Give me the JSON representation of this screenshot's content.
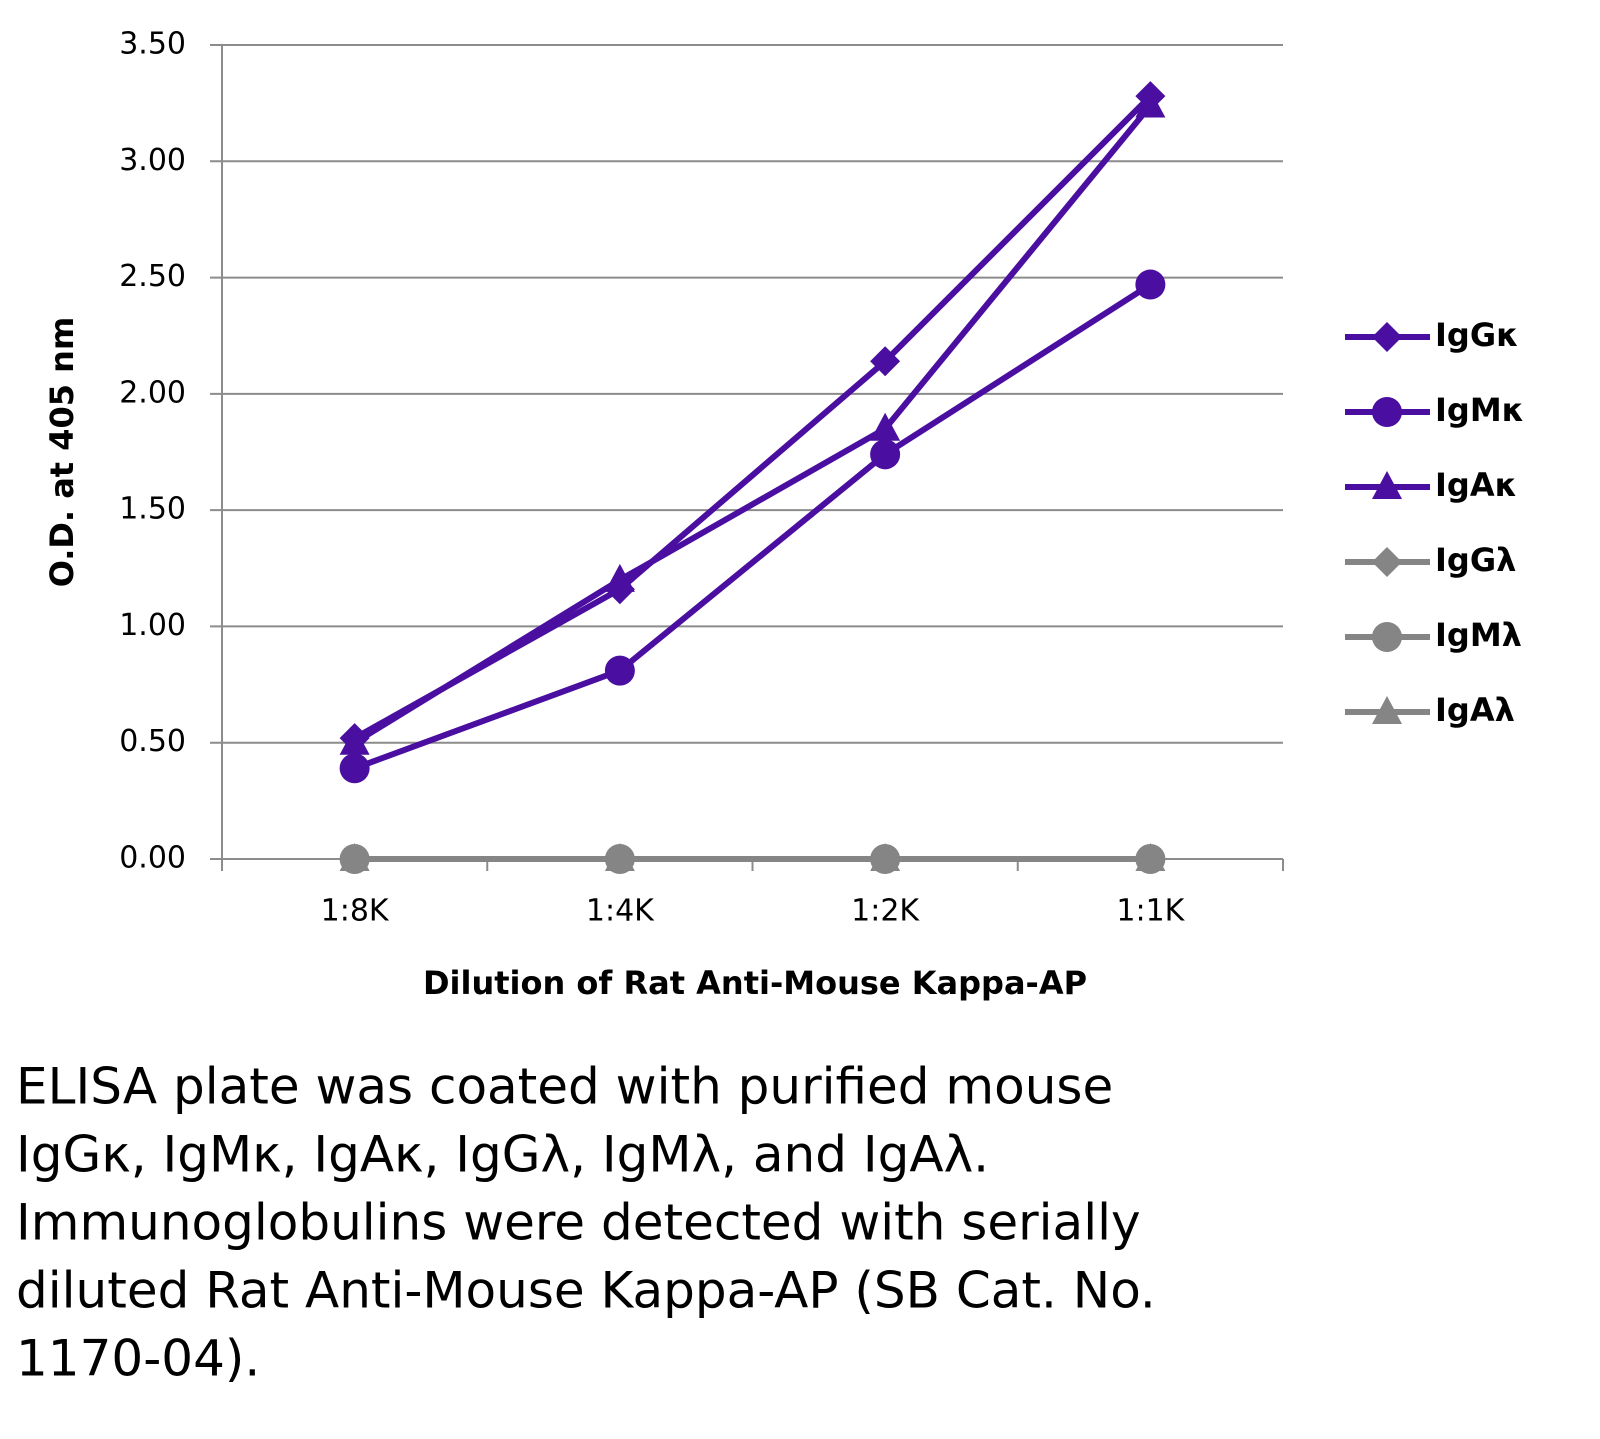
{
  "chart_data": {
    "type": "line",
    "y_label": "O.D. at 405 nm",
    "x_label": "Dilution of Rat Anti-Mouse Kappa-AP",
    "categories": [
      "1:8K",
      "1:4K",
      "1:2K",
      "1:1K"
    ],
    "ylim": [
      0,
      3.5
    ],
    "yticks": [
      {
        "value": 0,
        "label": "0.00"
      },
      {
        "value": 0.5,
        "label": "0.50"
      },
      {
        "value": 1,
        "label": "1.00"
      },
      {
        "value": 1.5,
        "label": "1.50"
      },
      {
        "value": 2,
        "label": "2.00"
      },
      {
        "value": 2.5,
        "label": "2.50"
      },
      {
        "value": 3,
        "label": "3.00"
      },
      {
        "value": 3.5,
        "label": "3.50"
      }
    ],
    "grid": true,
    "legend": "right",
    "series": [
      {
        "name": "IgGκ",
        "color": "#4a0ea0",
        "marker": "diamond",
        "values": [
          0.52,
          1.16,
          2.14,
          3.28
        ]
      },
      {
        "name": "IgMκ",
        "color": "#4a0ea0",
        "marker": "circle",
        "values": [
          0.39,
          0.81,
          1.74,
          2.47
        ]
      },
      {
        "name": "IgAκ",
        "color": "#4a0ea0",
        "marker": "triangle",
        "values": [
          0.5,
          1.2,
          1.85,
          3.24
        ]
      },
      {
        "name": "IgGλ",
        "color": "#858585",
        "marker": "diamond",
        "values": [
          0,
          0,
          0,
          0
        ]
      },
      {
        "name": "IgMλ",
        "color": "#858585",
        "marker": "circle",
        "values": [
          0,
          0,
          0,
          0
        ]
      },
      {
        "name": "IgAλ",
        "color": "#858585",
        "marker": "triangle",
        "values": [
          0,
          0,
          0,
          0
        ]
      }
    ]
  },
  "caption": [
    "ELISA plate was coated with purified mouse",
    "IgGκ, IgMκ, IgAκ, IgGλ, IgMλ, and IgAλ.",
    "Immunoglobulins were detected with serially",
    "diluted Rat Anti-Mouse Kappa-AP (SB Cat. No.",
    "1170-04)."
  ]
}
